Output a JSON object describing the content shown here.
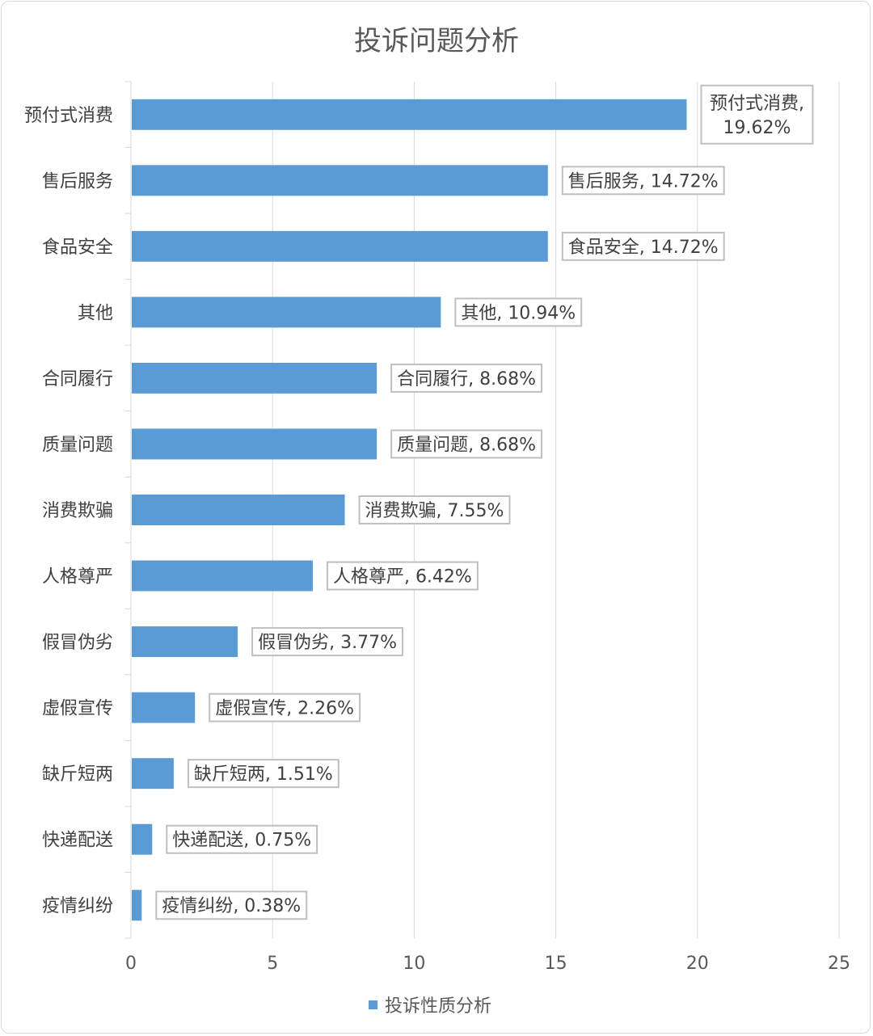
{
  "chart_data": {
    "type": "bar",
    "orientation": "horizontal",
    "title": "投诉问题分析",
    "categories": [
      "预付式消费",
      "售后服务",
      "食品安全",
      "其他",
      "合同履行",
      "质量问题",
      "消费欺骗",
      "人格尊严",
      "假冒伪劣",
      "虚假宣传",
      "缺斤短两",
      "快递配送",
      "疫情纠纷"
    ],
    "series": [
      {
        "name": "投诉性质分析",
        "values": [
          19.62,
          14.72,
          14.72,
          10.94,
          8.68,
          8.68,
          7.55,
          6.42,
          3.77,
          2.26,
          1.51,
          0.75,
          0.38
        ],
        "data_labels": [
          "预付式消费, 19.62%",
          "售后服务, 14.72%",
          "食品安全, 14.72%",
          "其他, 10.94%",
          "合同履行, 8.68%",
          "质量问题, 8.68%",
          "消费欺骗, 7.55%",
          "人格尊严, 6.42%",
          "假冒伪劣, 3.77%",
          "虚假宣传, 2.26%",
          "缺斤短两, 1.51%",
          "快递配送, 0.75%",
          "疫情纠纷, 0.38%"
        ]
      }
    ],
    "xlim": [
      0,
      25
    ],
    "xticks": [
      "0",
      "5",
      "10",
      "15",
      "20",
      "25"
    ],
    "grid": "vertical",
    "legend": "bottom",
    "colors": {
      "bar": "#5b9bd5",
      "grid": "#d9d9d9",
      "label_border": "#bfbfbf"
    }
  }
}
